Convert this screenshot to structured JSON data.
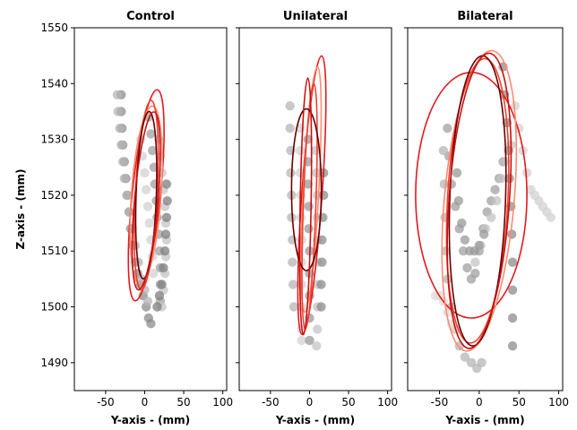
{
  "chart_data": [
    {
      "type": "scatter",
      "title": "Control",
      "xlabel": "Y-axis - (mm)",
      "ylabel": "Z-axis - (mm)",
      "xlim": [
        -90,
        105
      ],
      "ylim": [
        1485,
        1550
      ],
      "xticks": [
        -50,
        0,
        50,
        100
      ],
      "yticks": [
        1490,
        1500,
        1510,
        1520,
        1530,
        1540,
        1550
      ],
      "show_ytick_labels": true,
      "trajectories": [
        {
          "color": "#8c8c8c",
          "points": [
            [
              -30,
              1538
            ],
            [
              -30,
              1535
            ],
            [
              -29,
              1532
            ],
            [
              -28,
              1529
            ],
            [
              -26,
              1526
            ],
            [
              -24,
              1523
            ],
            [
              -22,
              1520
            ],
            [
              -20,
              1517
            ],
            [
              -18,
              1514
            ],
            [
              -15,
              1511
            ],
            [
              -12,
              1508
            ],
            [
              -9,
              1506
            ],
            [
              -5,
              1504
            ],
            [
              -2,
              1502
            ],
            [
              2,
              1500
            ],
            [
              5,
              1498
            ],
            [
              8,
              1497
            ]
          ]
        },
        {
          "color": "#b5b5b5",
          "points": [
            [
              -35,
              1538
            ],
            [
              -34,
              1535
            ],
            [
              -32,
              1532
            ],
            [
              -30,
              1529
            ],
            [
              -28,
              1526
            ],
            [
              -26,
              1523
            ],
            [
              -23,
              1520
            ],
            [
              -20,
              1517
            ],
            [
              -16,
              1514
            ],
            [
              -12,
              1511
            ],
            [
              -8,
              1508
            ],
            [
              -4,
              1505
            ],
            [
              0,
              1503
            ],
            [
              4,
              1501
            ]
          ]
        },
        {
          "color": "#a0a0a0",
          "points": [
            [
              5,
              1534
            ],
            [
              8,
              1531
            ],
            [
              10,
              1528
            ],
            [
              12,
              1525
            ],
            [
              13,
              1522
            ],
            [
              15,
              1519
            ],
            [
              16,
              1516
            ],
            [
              18,
              1513
            ],
            [
              19,
              1510
            ],
            [
              20,
              1507
            ],
            [
              20,
              1504
            ],
            [
              20,
              1501
            ]
          ]
        },
        {
          "color": "#c4c4c4",
          "points": [
            [
              18,
              1530
            ],
            [
              20,
              1527
            ],
            [
              22,
              1524
            ],
            [
              24,
              1521
            ],
            [
              26,
              1518
            ],
            [
              27,
              1515
            ],
            [
              28,
              1512
            ],
            [
              27,
              1509
            ],
            [
              26,
              1506
            ],
            [
              24,
              1503
            ],
            [
              22,
              1500
            ]
          ]
        },
        {
          "color": "#7f7f7f",
          "points": [
            [
              28,
              1522
            ],
            [
              29,
              1519
            ],
            [
              28,
              1516
            ],
            [
              27,
              1513
            ],
            [
              26,
              1510
            ],
            [
              24,
              1507
            ],
            [
              22,
              1504
            ],
            [
              19,
              1502
            ],
            [
              16,
              1500
            ]
          ]
        },
        {
          "color": "#d2d2d2",
          "points": [
            [
              -5,
              1530
            ],
            [
              -3,
              1527
            ],
            [
              0,
              1524
            ],
            [
              2,
              1521
            ],
            [
              4,
              1518
            ],
            [
              6,
              1515
            ],
            [
              8,
              1512
            ],
            [
              10,
              1509
            ],
            [
              11,
              1506
            ]
          ]
        }
      ],
      "ellipses": [
        {
          "color": "#e41a1c",
          "cx": 2,
          "cy": 1520,
          "rx": 18,
          "ry": 19,
          "angle": 6
        },
        {
          "color": "#ff8a70",
          "cx": 2,
          "cy": 1520,
          "rx": 19,
          "ry": 16,
          "angle": 4
        },
        {
          "color": "#f04030",
          "cx": 2,
          "cy": 1520,
          "rx": 14,
          "ry": 17,
          "angle": 3
        },
        {
          "color": "#6b0000",
          "cx": 2,
          "cy": 1520,
          "rx": 13,
          "ry": 15,
          "angle": 2
        },
        {
          "color": "#c81010",
          "cx": 2,
          "cy": 1519,
          "rx": 15,
          "ry": 16,
          "angle": 5
        }
      ]
    },
    {
      "type": "scatter",
      "title": "Unilateral",
      "xlabel": "Y-axis - (mm)",
      "ylabel": "",
      "xlim": [
        -90,
        105
      ],
      "ylim": [
        1485,
        1550
      ],
      "xticks": [
        -50,
        0,
        50,
        100
      ],
      "yticks": [
        1490,
        1500,
        1510,
        1520,
        1530,
        1540,
        1550
      ],
      "show_ytick_labels": false,
      "trajectories": [
        {
          "color": "#b5b5b5",
          "points": [
            [
              -25,
              1536
            ],
            [
              -25,
              1532
            ],
            [
              -24,
              1528
            ],
            [
              -24,
              1524
            ],
            [
              -23,
              1520
            ],
            [
              -23,
              1516
            ],
            [
              -22,
              1512
            ],
            [
              -22,
              1508
            ],
            [
              -21,
              1504
            ],
            [
              -20,
              1500
            ]
          ]
        },
        {
          "color": "#d2d2d2",
          "points": [
            [
              -12,
              1532
            ],
            [
              -12,
              1528
            ],
            [
              -12,
              1524
            ],
            [
              -11,
              1520
            ],
            [
              -11,
              1516
            ],
            [
              -10,
              1512
            ],
            [
              -10,
              1508
            ],
            [
              -10,
              1504
            ],
            [
              -10,
              1500
            ],
            [
              -10,
              1496
            ],
            [
              -10,
              1494
            ]
          ]
        },
        {
          "color": "#9a9a9a",
          "points": [
            [
              -2,
              1530
            ],
            [
              -2,
              1526
            ],
            [
              -2,
              1522
            ],
            [
              -1,
              1518
            ],
            [
              -1,
              1514
            ],
            [
              0,
              1510
            ],
            [
              0,
              1506
            ],
            [
              0,
              1502
            ],
            [
              0,
              1498
            ],
            [
              0,
              1494
            ]
          ]
        },
        {
          "color": "#c4c4c4",
          "points": [
            [
              8,
              1528
            ],
            [
              9,
              1524
            ],
            [
              10,
              1520
            ],
            [
              10,
              1516
            ],
            [
              10,
              1512
            ],
            [
              10,
              1508
            ],
            [
              10,
              1504
            ],
            [
              10,
              1500
            ],
            [
              10,
              1496
            ],
            [
              9,
              1493
            ]
          ]
        },
        {
          "color": "#8c8c8c",
          "points": [
            [
              18,
              1524
            ],
            [
              18,
              1520
            ],
            [
              17,
              1516
            ],
            [
              16,
              1512
            ],
            [
              16,
              1508
            ],
            [
              15,
              1504
            ],
            [
              15,
              1500
            ]
          ]
        }
      ],
      "ellipses": [
        {
          "color": "#e41a1c",
          "cx": 3,
          "cy": 1520,
          "rx": 13,
          "ry": 25,
          "angle": 4
        },
        {
          "color": "#ff8a70",
          "cx": 2,
          "cy": 1521,
          "rx": 10,
          "ry": 22,
          "angle": 3
        },
        {
          "color": "#f04030",
          "cx": 0,
          "cy": 1518,
          "rx": 8,
          "ry": 22,
          "angle": 2
        },
        {
          "color": "#6b0000",
          "cx": -4,
          "cy": 1521,
          "rx": 19,
          "ry": 14.5,
          "angle": 0
        },
        {
          "color": "#c81010",
          "cx": -5,
          "cy": 1518,
          "rx": 7,
          "ry": 23,
          "angle": 1
        }
      ]
    },
    {
      "type": "scatter",
      "title": "Bilateral",
      "xlabel": "Y-axis - (mm)",
      "ylabel": "",
      "xlim": [
        -90,
        105
      ],
      "ylim": [
        1485,
        1550
      ],
      "xticks": [
        -50,
        0,
        50,
        100
      ],
      "yticks": [
        1490,
        1500,
        1510,
        1520,
        1530,
        1540,
        1550
      ],
      "show_ytick_labels": false,
      "trajectories": [
        {
          "color": "#a0a0a0",
          "points": [
            [
              -40,
              1532
            ],
            [
              -38,
              1527
            ],
            [
              -35,
              1522
            ],
            [
              -30,
              1518
            ],
            [
              -25,
              1514
            ],
            [
              -20,
              1510
            ],
            [
              -15,
              1507
            ],
            [
              -10,
              1505
            ],
            [
              -5,
              1506
            ],
            [
              0,
              1510
            ],
            [
              5,
              1514
            ],
            [
              10,
              1517
            ],
            [
              15,
              1519
            ],
            [
              20,
              1521
            ],
            [
              25,
              1523
            ],
            [
              30,
              1526
            ]
          ]
        },
        {
          "color": "#b5b5b5",
          "points": [
            [
              -45,
              1528
            ],
            [
              -44,
              1522
            ],
            [
              -43,
              1516
            ],
            [
              -42,
              1510
            ],
            [
              -40,
              1505
            ],
            [
              -35,
              1500
            ],
            [
              -30,
              1496
            ],
            [
              -25,
              1493
            ],
            [
              -18,
              1491
            ],
            [
              -10,
              1490
            ],
            [
              -3,
              1489
            ],
            [
              3,
              1490
            ]
          ]
        },
        {
          "color": "#c4c4c4",
          "points": [
            [
              -5,
              1508
            ],
            [
              2,
              1511
            ],
            [
              8,
              1514
            ],
            [
              15,
              1516
            ],
            [
              22,
              1519
            ],
            [
              28,
              1523
            ],
            [
              33,
              1526
            ],
            [
              40,
              1529
            ]
          ]
        },
        {
          "color": "#8c8c8c",
          "points": [
            [
              30,
              1543
            ],
            [
              32,
              1538
            ],
            [
              35,
              1533
            ],
            [
              37,
              1528
            ],
            [
              38,
              1523
            ],
            [
              40,
              1518
            ],
            [
              41,
              1513
            ],
            [
              42,
              1508
            ],
            [
              42,
              1503
            ],
            [
              42,
              1498
            ],
            [
              42,
              1493
            ]
          ]
        },
        {
          "color": "#d2d2d2",
          "points": [
            [
              45,
              1536
            ],
            [
              50,
              1532
            ],
            [
              55,
              1528
            ],
            [
              60,
              1524
            ],
            [
              65,
              1521
            ],
            [
              70,
              1520
            ],
            [
              75,
              1519
            ],
            [
              80,
              1518
            ],
            [
              85,
              1517
            ],
            [
              90,
              1516
            ]
          ]
        },
        {
          "color": "#9a9a9a",
          "points": [
            [
              -28,
              1524
            ],
            [
              -26,
              1519
            ],
            [
              -22,
              1515
            ],
            [
              -18,
              1512
            ],
            [
              -12,
              1510
            ],
            [
              -6,
              1510
            ],
            [
              0,
              1511
            ],
            [
              6,
              1513
            ]
          ]
        },
        {
          "color": "#dcdcdc",
          "points": [
            [
              -55,
              1502
            ],
            [
              -50,
              1502
            ],
            [
              -45,
              1501
            ],
            [
              -40,
              1499
            ],
            [
              -35,
              1497
            ],
            [
              -28,
              1496
            ]
          ]
        }
      ],
      "ellipses": [
        {
          "color": "#e41a1c",
          "cx": -10,
          "cy": 1520,
          "rx": 70,
          "ry": 22,
          "angle": 0
        },
        {
          "color": "#ff8a70",
          "cx": 0,
          "cy": 1519,
          "rx": 44,
          "ry": 27,
          "angle": 5
        },
        {
          "color": "#f04030",
          "cx": -2,
          "cy": 1519,
          "rx": 38,
          "ry": 25.5,
          "angle": 3
        },
        {
          "color": "#6b0000",
          "cx": -2,
          "cy": 1519,
          "rx": 35,
          "ry": 26,
          "angle": 2
        },
        {
          "color": "#c81010",
          "cx": 0,
          "cy": 1519,
          "rx": 38,
          "ry": 26.5,
          "angle": 4
        }
      ]
    }
  ]
}
